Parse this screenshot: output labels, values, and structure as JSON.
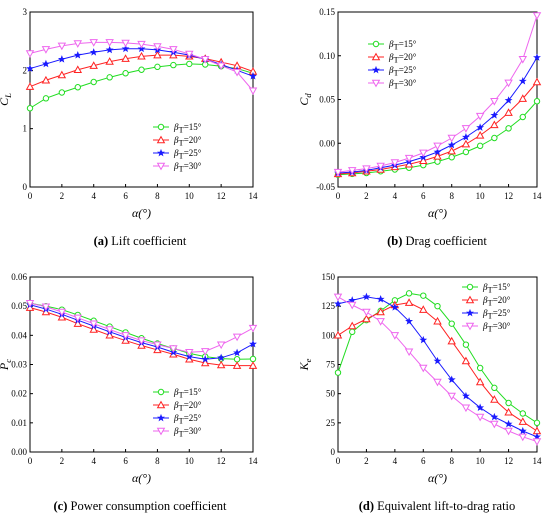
{
  "figure": {
    "panels": [
      {
        "caption_letter": "(a)",
        "caption_text": "Lift coefficient",
        "ylabel_main": "C",
        "ylabel_sub": "L",
        "xlabel": "α(°)",
        "yticks": [
          "0",
          "1",
          "2",
          "3"
        ],
        "xticks": [
          "0",
          "2",
          "4",
          "6",
          "8",
          "10",
          "12",
          "14"
        ],
        "legend_position": "lower-right"
      },
      {
        "caption_letter": "(b)",
        "caption_text": "Drag coefficient",
        "ylabel_main": "C",
        "ylabel_sub": "d",
        "xlabel": "α(°)",
        "yticks": [
          "-0.05",
          "0.00",
          "0.05",
          "0.10",
          "0.15"
        ],
        "xticks": [
          "0",
          "2",
          "4",
          "6",
          "8",
          "10",
          "12",
          "14"
        ],
        "legend_position": "upper-left"
      },
      {
        "caption_letter": "(c)",
        "caption_text": "Power consumption coefficient",
        "ylabel_main": "P",
        "ylabel_sub": "c",
        "xlabel": "α(°)",
        "yticks": [
          "0.00",
          "0.01",
          "0.02",
          "0.03",
          "0.04",
          "0.05",
          "0.06"
        ],
        "xticks": [
          "0",
          "2",
          "4",
          "6",
          "8",
          "10",
          "12",
          "14"
        ],
        "legend_position": "lower-right"
      },
      {
        "caption_letter": "(d)",
        "caption_text": "Equivalent lift-to-drag ratio",
        "ylabel_main": "K",
        "ylabel_sub": "e",
        "xlabel": "α(°)",
        "yticks": [
          "0",
          "25",
          "50",
          "75",
          "100",
          "125",
          "150"
        ],
        "xticks": [
          "0",
          "2",
          "4",
          "6",
          "8",
          "10",
          "12",
          "14"
        ],
        "legend_position": "upper-right"
      }
    ]
  },
  "chart_data": [
    {
      "type": "line",
      "title": "",
      "xlabel": "α(°)",
      "ylabel": "CL",
      "xlim": [
        0,
        14
      ],
      "ylim": [
        0,
        3
      ],
      "grid": false,
      "legend": "lower-right",
      "x": [
        0,
        1,
        2,
        3,
        4,
        5,
        6,
        7,
        8,
        9,
        10,
        11,
        12,
        13,
        14
      ],
      "series": [
        {
          "name": "βT=15°",
          "color": "#22dd22",
          "marker": "circle",
          "values": [
            1.35,
            1.52,
            1.62,
            1.71,
            1.8,
            1.88,
            1.95,
            2.01,
            2.06,
            2.09,
            2.11,
            2.1,
            2.07,
            2.03,
            1.95
          ]
        },
        {
          "name": "βT=20°",
          "color": "#ff2222",
          "marker": "triangle-up",
          "values": [
            1.72,
            1.83,
            1.92,
            2.01,
            2.08,
            2.15,
            2.2,
            2.24,
            2.26,
            2.26,
            2.24,
            2.2,
            2.14,
            2.08,
            1.98
          ]
        },
        {
          "name": "βT=25°",
          "color": "#1a1aff",
          "marker": "star",
          "values": [
            2.03,
            2.11,
            2.19,
            2.26,
            2.31,
            2.35,
            2.37,
            2.37,
            2.35,
            2.31,
            2.26,
            2.19,
            2.1,
            2.0,
            1.9
          ]
        },
        {
          "name": "βT=30°",
          "color": "#ee66ee",
          "marker": "triangle-down",
          "values": [
            2.29,
            2.36,
            2.42,
            2.46,
            2.48,
            2.48,
            2.47,
            2.45,
            2.41,
            2.36,
            2.28,
            2.19,
            2.08,
            1.97,
            1.65
          ]
        }
      ]
    },
    {
      "type": "line",
      "title": "",
      "xlabel": "α(°)",
      "ylabel": "Cd",
      "xlim": [
        0,
        14
      ],
      "ylim": [
        -0.05,
        0.15
      ],
      "grid": false,
      "legend": "upper-left",
      "x": [
        0,
        1,
        2,
        3,
        4,
        5,
        6,
        7,
        8,
        9,
        10,
        11,
        12,
        13,
        14
      ],
      "series": [
        {
          "name": "βT=15°",
          "color": "#22dd22",
          "marker": "circle",
          "values": [
            -0.036,
            -0.035,
            -0.034,
            -0.032,
            -0.03,
            -0.028,
            -0.025,
            -0.021,
            -0.016,
            -0.01,
            -0.003,
            0.006,
            0.017,
            0.03,
            0.048
          ]
        },
        {
          "name": "βT=20°",
          "color": "#ff2222",
          "marker": "triangle-up",
          "values": [
            -0.035,
            -0.034,
            -0.032,
            -0.03,
            -0.027,
            -0.024,
            -0.02,
            -0.015,
            -0.009,
            -0.001,
            0.009,
            0.021,
            0.035,
            0.051,
            0.07
          ]
        },
        {
          "name": "βT=25°",
          "color": "#1a1aff",
          "marker": "star",
          "values": [
            -0.034,
            -0.033,
            -0.031,
            -0.028,
            -0.025,
            -0.021,
            -0.016,
            -0.01,
            -0.002,
            0.007,
            0.018,
            0.032,
            0.049,
            0.071,
            0.098
          ]
        },
        {
          "name": "βT=30°",
          "color": "#ee66ee",
          "marker": "triangle-down",
          "values": [
            -0.033,
            -0.031,
            -0.029,
            -0.026,
            -0.022,
            -0.017,
            -0.011,
            -0.003,
            0.006,
            0.017,
            0.031,
            0.048,
            0.069,
            0.096,
            0.146
          ]
        }
      ]
    },
    {
      "type": "line",
      "title": "",
      "xlabel": "α(°)",
      "ylabel": "Pc",
      "xlim": [
        0,
        14
      ],
      "ylim": [
        0,
        0.06
      ],
      "grid": false,
      "legend": "lower-right",
      "x": [
        0,
        1,
        2,
        3,
        4,
        5,
        6,
        7,
        8,
        9,
        10,
        11,
        12,
        13,
        14
      ],
      "series": [
        {
          "name": "βT=15°",
          "color": "#22dd22",
          "marker": "circle",
          "values": [
            0.051,
            0.05,
            0.0488,
            0.047,
            0.045,
            0.043,
            0.041,
            0.039,
            0.0372,
            0.0355,
            0.0338,
            0.0327,
            0.032,
            0.0318,
            0.0319
          ]
        },
        {
          "name": "βT=20°",
          "color": "#ff2222",
          "marker": "triangle-up",
          "values": [
            0.0495,
            0.048,
            0.0462,
            0.044,
            0.042,
            0.04,
            0.0382,
            0.0365,
            0.035,
            0.0335,
            0.0318,
            0.0305,
            0.0298,
            0.0296,
            0.0296
          ]
        },
        {
          "name": "βT=25°",
          "color": "#1a1aff",
          "marker": "star",
          "values": [
            0.0505,
            0.049,
            0.0472,
            0.0452,
            0.0432,
            0.0412,
            0.0393,
            0.0375,
            0.036,
            0.0342,
            0.0327,
            0.0318,
            0.0323,
            0.034,
            0.037
          ]
        },
        {
          "name": "βT=30°",
          "color": "#ee66ee",
          "marker": "triangle-down",
          "values": [
            0.051,
            0.0498,
            0.048,
            0.046,
            0.044,
            0.042,
            0.04,
            0.0382,
            0.0368,
            0.0355,
            0.0342,
            0.0345,
            0.0368,
            0.0395,
            0.0425
          ]
        }
      ]
    },
    {
      "type": "line",
      "title": "",
      "xlabel": "α(°)",
      "ylabel": "Ke",
      "xlim": [
        0,
        14
      ],
      "ylim": [
        0,
        150
      ],
      "grid": false,
      "legend": "upper-right",
      "x": [
        0,
        1,
        2,
        3,
        4,
        5,
        6,
        7,
        8,
        9,
        10,
        11,
        12,
        13,
        14
      ],
      "series": [
        {
          "name": "βT=15°",
          "color": "#22dd22",
          "marker": "circle",
          "values": [
            68,
            103,
            113,
            121,
            130,
            136,
            134,
            125,
            110,
            92,
            72,
            55,
            42,
            33,
            25
          ]
        },
        {
          "name": "βT=20°",
          "color": "#ff2222",
          "marker": "triangle-up",
          "values": [
            100,
            108,
            114,
            120,
            126,
            128,
            122,
            112,
            95,
            78,
            60,
            45,
            34,
            26,
            18
          ]
        },
        {
          "name": "βT=25°",
          "color": "#1a1aff",
          "marker": "star",
          "values": [
            127,
            130,
            133,
            131,
            124,
            112,
            96,
            78,
            62,
            48,
            38,
            30,
            24,
            18,
            13
          ]
        },
        {
          "name": "βT=30°",
          "color": "#ee66ee",
          "marker": "triangle-down",
          "values": [
            133,
            126,
            120,
            112,
            100,
            86,
            72,
            60,
            48,
            38,
            30,
            24,
            18,
            13,
            9
          ]
        }
      ]
    }
  ]
}
